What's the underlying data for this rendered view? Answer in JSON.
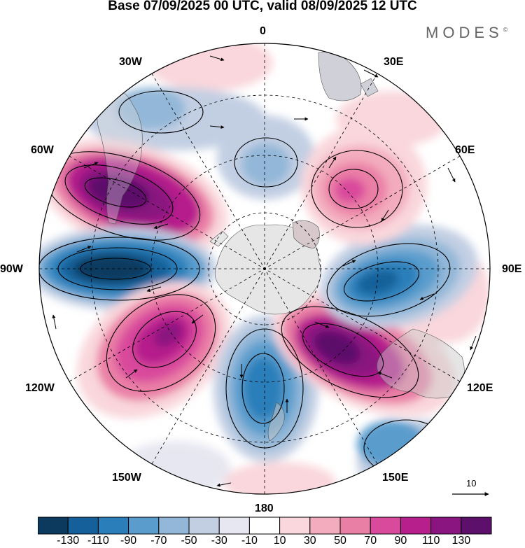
{
  "title": "Base 07/09/2025 00 UTC, valid 08/09/2025 12 UTC",
  "logo": "MODES",
  "logo_mark": "©",
  "meridian_labels": {
    "m0": "0",
    "m30e": "30E",
    "m60e": "60E",
    "m90e": "90E",
    "m120e": "120E",
    "m150e": "150E",
    "m180": "180",
    "m150w": "150W",
    "m120w": "120W",
    "m90w": "90W",
    "m60w": "60W",
    "m30w": "30W"
  },
  "reference_vector_label": "10",
  "colorbar": {
    "ticks": [
      "-130",
      "-110",
      "-90",
      "-70",
      "-50",
      "-30",
      "-10",
      "10",
      "30",
      "50",
      "70",
      "90",
      "110",
      "130"
    ],
    "colors": [
      "#0c3a5e",
      "#15609a",
      "#2a7fba",
      "#5a9dcd",
      "#93b7d8",
      "#c2cfe3",
      "#e7e7f1",
      "#ffffff",
      "#f9d7dc",
      "#f3acbe",
      "#ea7fa6",
      "#d94a9c",
      "#b61f8c",
      "#8a1580",
      "#5c0f6b"
    ]
  },
  "features": [
    {
      "name": "trough-south-america-west",
      "sign": "positive",
      "max": 130
    },
    {
      "name": "low-west-antarctic-90w",
      "sign": "negative",
      "min": -130
    },
    {
      "name": "high-120w",
      "sign": "positive",
      "max": 110
    },
    {
      "name": "low-180",
      "sign": "negative",
      "min": -90
    },
    {
      "name": "high-135e",
      "sign": "positive",
      "max": 130
    },
    {
      "name": "low-90e",
      "sign": "negative",
      "min": -110
    },
    {
      "name": "high-60e",
      "sign": "positive",
      "max": 90
    },
    {
      "name": "low-20w",
      "sign": "negative",
      "min": -50
    }
  ]
}
